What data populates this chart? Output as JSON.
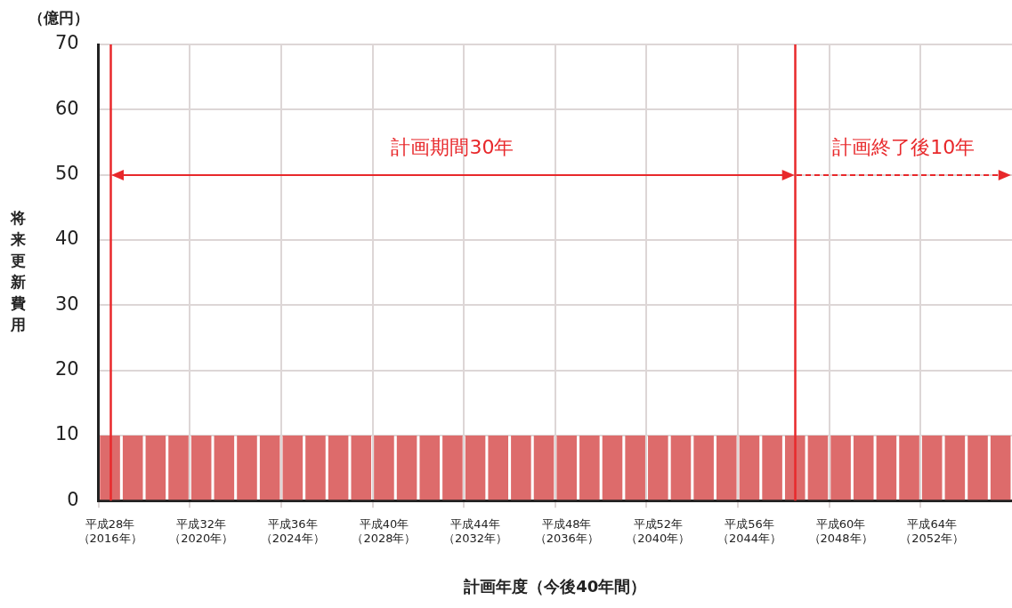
{
  "chart_data": {
    "type": "bar",
    "xlabel": "計画年度（今後40年間）",
    "ylabel": "将来更新費用",
    "categories": [
      "平成28年（2016年）",
      null,
      null,
      null,
      "平成32年（2020年）",
      null,
      null,
      null,
      "平成36年（2024年）",
      null,
      null,
      null,
      "平成40年（2028年）",
      null,
      null,
      null,
      "平成44年（2032年）",
      null,
      null,
      null,
      "平成48年（2036年）",
      null,
      null,
      null,
      "平成52年（2040年）",
      null,
      null,
      null,
      "平成56年（2044年）",
      null,
      null,
      null,
      "平成60年（2048年）",
      null,
      null,
      null,
      "平成64年（2052年）",
      null,
      null,
      null
    ],
    "values": [
      10,
      10,
      10,
      10,
      10,
      10,
      10,
      10,
      10,
      10,
      10,
      10,
      10,
      10,
      10,
      10,
      10,
      10,
      10,
      10,
      10,
      10,
      10,
      10,
      10,
      10,
      10,
      10,
      10,
      10,
      10,
      10,
      10,
      10,
      10,
      10,
      10,
      10,
      10,
      10
    ],
    "color": "#dd6b6b",
    "ylim": [
      0,
      70
    ],
    "yticks": [
      0,
      10,
      20,
      30,
      40,
      50,
      60,
      70
    ],
    "grid": true,
    "annotations": [
      "（億円）",
      "計画期間30年",
      "計画終了後10年"
    ]
  }
}
